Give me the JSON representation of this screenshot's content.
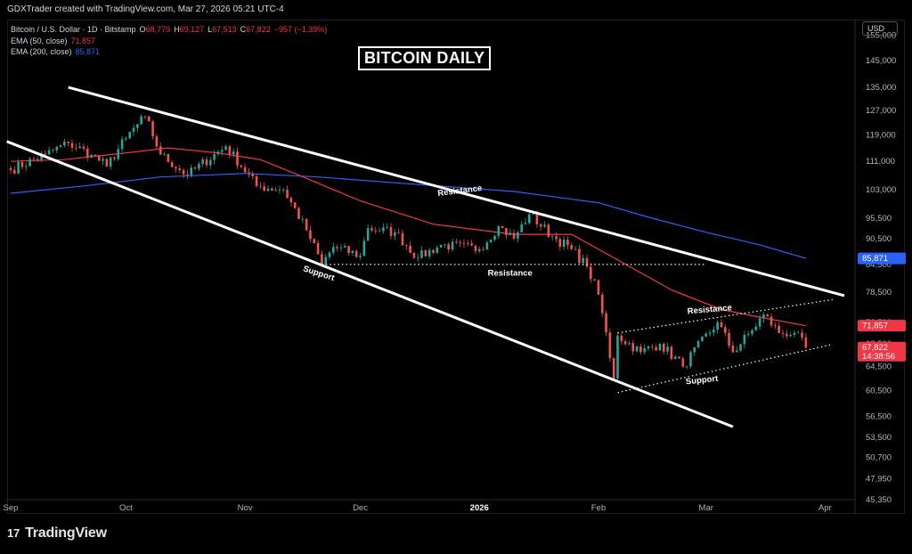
{
  "credit": "GDXTrader created with TradingView.com, Mar 27, 2026 05:21 UTC-4",
  "legend": {
    "symbol": "Bitcoin / U.S. Dollar · 1D · Bitstamp",
    "o_label": "O",
    "o_value": "68,779",
    "h_label": "H",
    "h_value": "69,127",
    "l_label": "L",
    "l_value": "67,513",
    "c_label": "C",
    "c_value": "67,822",
    "change": "−957 (−1.39%)",
    "ema50_label": "EMA (50, close)",
    "ema50_value": "71,857",
    "ema200_label": "EMA (200, close)",
    "ema200_value": "85,871"
  },
  "title": "BITCOIN DAILY",
  "currency_button": "USD",
  "logo_text": "TradingView",
  "logo_mark": "17",
  "colors": {
    "up": "#26a69a",
    "down": "#ef5350",
    "ema50": "#f23645",
    "ema200": "#2962ff",
    "line": "#ffffff"
  },
  "chart_data": {
    "type": "candlestick",
    "y_scale": "log",
    "ylim": [
      44500,
      160000
    ],
    "x_start": "2025-09-01",
    "x_end": "2026-04-06",
    "x_ticks": [
      {
        "date": "2025-09-01",
        "label": "Sep"
      },
      {
        "date": "2025-10-01",
        "label": "Oct"
      },
      {
        "date": "2025-11-01",
        "label": "Nov"
      },
      {
        "date": "2025-12-01",
        "label": "Dec"
      },
      {
        "date": "2026-01-01",
        "label": "2026",
        "bold": true
      },
      {
        "date": "2026-02-01",
        "label": "Feb"
      },
      {
        "date": "2026-03-01",
        "label": "Mar"
      },
      {
        "date": "2026-04-01",
        "label": "Apr"
      }
    ],
    "y_ticks": [
      {
        "value": 155000,
        "label": "155,000"
      },
      {
        "value": 145000,
        "label": "145,000"
      },
      {
        "value": 135000,
        "label": "135,000"
      },
      {
        "value": 127000,
        "label": "127,000"
      },
      {
        "value": 119000,
        "label": "119,000"
      },
      {
        "value": 111000,
        "label": "111,000"
      },
      {
        "value": 103000,
        "label": "103,000"
      },
      {
        "value": 95500,
        "label": "95,500"
      },
      {
        "value": 90500,
        "label": "90,500"
      },
      {
        "value": 84500,
        "label": "84,500"
      },
      {
        "value": 78500,
        "label": "78,500"
      },
      {
        "value": 72500,
        "label": "72,500"
      },
      {
        "value": 68500,
        "label": "68,500"
      },
      {
        "value": 64500,
        "label": "64,500"
      },
      {
        "value": 60500,
        "label": "60,500"
      },
      {
        "value": 56500,
        "label": "56,500"
      },
      {
        "value": 53500,
        "label": "53,500"
      },
      {
        "value": 50700,
        "label": "50,700"
      },
      {
        "value": 47950,
        "label": "47,950"
      },
      {
        "value": 45350,
        "label": "45,350"
      }
    ],
    "price_tags": [
      {
        "name": "ema200",
        "value": 85871,
        "label": "85,871",
        "color": "#2962ff"
      },
      {
        "name": "ema50",
        "value": 71857,
        "label": "71,857",
        "color": "#f23645"
      },
      {
        "name": "last",
        "value": 67822,
        "label": "67,822",
        "sub": "14:38:56",
        "color": "#f23645"
      }
    ],
    "anchors_close": [
      [
        "2025-09-01",
        108500
      ],
      [
        "2025-09-10",
        113000
      ],
      [
        "2025-09-16",
        116500
      ],
      [
        "2025-09-22",
        113000
      ],
      [
        "2025-09-26",
        109500
      ],
      [
        "2025-10-01",
        118000
      ],
      [
        "2025-10-06",
        125000
      ],
      [
        "2025-10-10",
        113000
      ],
      [
        "2025-10-17",
        107000
      ],
      [
        "2025-10-27",
        115500
      ],
      [
        "2025-11-04",
        104000
      ],
      [
        "2025-11-11",
        103000
      ],
      [
        "2025-11-17",
        92500
      ],
      [
        "2025-11-21",
        84500
      ],
      [
        "2025-11-24",
        88500
      ],
      [
        "2025-12-01",
        86500
      ],
      [
        "2025-12-03",
        93000
      ],
      [
        "2025-12-10",
        92000
      ],
      [
        "2025-12-16",
        86000
      ],
      [
        "2025-12-22",
        89000
      ],
      [
        "2026-01-01",
        88000
      ],
      [
        "2026-01-06",
        93500
      ],
      [
        "2026-01-10",
        90500
      ],
      [
        "2026-01-14",
        96500
      ],
      [
        "2026-01-20",
        91000
      ],
      [
        "2026-01-25",
        88000
      ],
      [
        "2026-01-29",
        84000
      ],
      [
        "2026-02-01",
        78000
      ],
      [
        "2026-02-05",
        62500
      ],
      [
        "2026-02-06",
        70000
      ],
      [
        "2026-02-12",
        67000
      ],
      [
        "2026-02-17",
        68500
      ],
      [
        "2026-02-23",
        64500
      ],
      [
        "2026-03-04",
        72500
      ],
      [
        "2026-03-08",
        67000
      ],
      [
        "2026-03-13",
        71000
      ],
      [
        "2026-03-16",
        74000
      ],
      [
        "2026-03-20",
        70500
      ],
      [
        "2026-03-24",
        70500
      ],
      [
        "2026-03-27",
        67822
      ]
    ],
    "ema50_line": [
      [
        "2025-09-01",
        111000
      ],
      [
        "2025-09-15",
        111500
      ],
      [
        "2025-10-01",
        113500
      ],
      [
        "2025-10-12",
        115000
      ],
      [
        "2025-10-25",
        113500
      ],
      [
        "2025-11-05",
        111500
      ],
      [
        "2025-11-15",
        107000
      ],
      [
        "2025-12-01",
        100000
      ],
      [
        "2025-12-20",
        94000
      ],
      [
        "2026-01-10",
        91500
      ],
      [
        "2026-01-25",
        91500
      ],
      [
        "2026-02-05",
        86000
      ],
      [
        "2026-02-20",
        79000
      ],
      [
        "2026-03-05",
        75000
      ],
      [
        "2026-03-15",
        73500
      ],
      [
        "2026-03-27",
        71857
      ]
    ],
    "ema200_line": [
      [
        "2025-09-01",
        102000
      ],
      [
        "2025-09-20",
        104000
      ],
      [
        "2025-10-10",
        106500
      ],
      [
        "2025-11-01",
        107500
      ],
      [
        "2025-11-20",
        106500
      ],
      [
        "2025-12-15",
        104500
      ],
      [
        "2026-01-10",
        102500
      ],
      [
        "2026-02-01",
        99500
      ],
      [
        "2026-02-15",
        95500
      ],
      [
        "2026-03-01",
        92000
      ],
      [
        "2026-03-15",
        89000
      ],
      [
        "2026-03-27",
        85871
      ]
    ],
    "trendlines": [
      {
        "name": "outer-resistance",
        "style": "solid",
        "from": [
          "2025-09-16",
          135000
        ],
        "to": [
          "2026-04-06",
          77800
        ]
      },
      {
        "name": "outer-support",
        "style": "solid",
        "from": [
          "2025-08-31",
          117000
        ],
        "to": [
          "2026-03-08",
          55000
        ]
      },
      {
        "name": "horizontal-resistance",
        "style": "dotted",
        "from": [
          "2025-11-21",
          84500
        ],
        "to": [
          "2026-03-01",
          84500
        ]
      },
      {
        "name": "inner-resistance",
        "style": "dotted",
        "from": [
          "2026-02-06",
          70500
        ],
        "to": [
          "2026-04-03",
          77000
        ]
      },
      {
        "name": "inner-support",
        "style": "dotted",
        "from": [
          "2026-02-06",
          60200
        ],
        "to": [
          "2026-04-03",
          68400
        ]
      }
    ],
    "annotations": [
      {
        "name": "outer-resistance-label",
        "text": "Resistance",
        "at": [
          "2025-12-27",
          102000
        ],
        "rotate": -7
      },
      {
        "name": "outer-support-label",
        "text": "Support",
        "at": [
          "2025-11-20",
          82000
        ],
        "rotate": 18
      },
      {
        "name": "horizontal-resistance-label",
        "text": "Resistance",
        "at": [
          "2026-01-09",
          82000
        ],
        "rotate": 0
      },
      {
        "name": "inner-resistance-label",
        "text": "Resistance",
        "at": [
          "2026-03-02",
          74500
        ],
        "rotate": -5
      },
      {
        "name": "inner-support-label",
        "text": "Support",
        "at": [
          "2026-02-28",
          61800
        ],
        "rotate": -6
      }
    ]
  }
}
